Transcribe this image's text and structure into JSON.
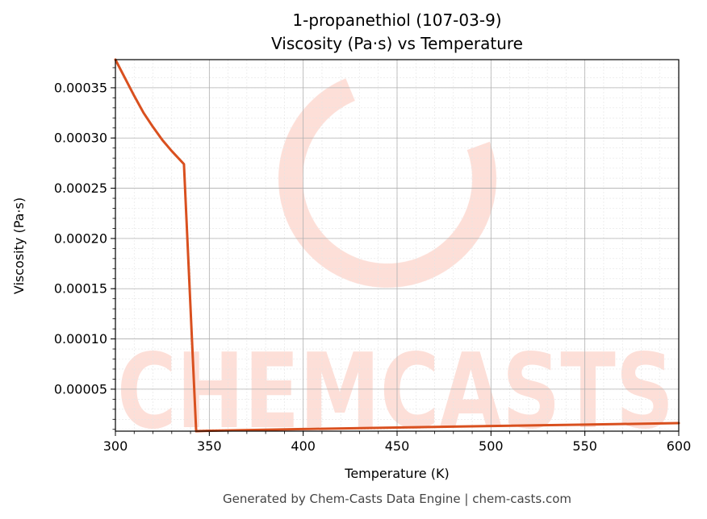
{
  "chart_data": {
    "type": "line",
    "title": "1-propanethiol (107-03-9)",
    "subtitle": "Viscosity (Pa·s) vs Temperature",
    "xlabel": "Temperature (K)",
    "ylabel": "Viscosity (Pa·s)",
    "xlim": [
      300,
      600
    ],
    "ylim": [
      8.2e-06,
      0.000378
    ],
    "x_ticks": [
      "300",
      "350",
      "400",
      "450",
      "500",
      "550",
      "600"
    ],
    "x_tick_values": [
      300,
      350,
      400,
      450,
      500,
      550,
      600
    ],
    "y_ticks": [
      "0.00005",
      "0.00010",
      "0.00015",
      "0.00020",
      "0.00025",
      "0.00030",
      "0.00035"
    ],
    "y_tick_values": [
      5e-05,
      0.0001,
      0.00015,
      0.0002,
      0.00025,
      0.0003,
      0.00035
    ],
    "grid": true,
    "series": [
      {
        "color": "#d9501f",
        "x": [
          300,
          305,
          310,
          315,
          320,
          325,
          330,
          336.5,
          343,
          350,
          400,
          450,
          500,
          550,
          600
        ],
        "y": [
          0.000378,
          0.00036,
          0.000342,
          0.000325,
          0.000311,
          0.000298,
          0.000287,
          0.000274,
          8.2e-06,
          8.6e-06,
          1.03e-05,
          1.18e-05,
          1.33e-05,
          1.47e-05,
          1.62e-05
        ]
      }
    ]
  },
  "watermark": {
    "text": "CHEMCASTS",
    "color": "#fddcd4"
  },
  "footer": "Generated by Chem-Casts Data Engine | chem-casts.com"
}
